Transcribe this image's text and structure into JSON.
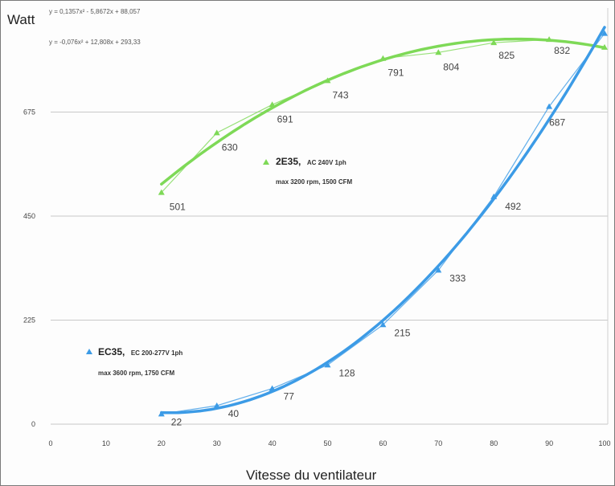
{
  "chart_data": {
    "type": "line",
    "ylabel": "Watt",
    "xlabel": "Vitesse du ventilateur",
    "xlim": [
      0,
      100
    ],
    "ylim": [
      0,
      900
    ],
    "x_ticks": [
      "0",
      "10",
      "20",
      "30",
      "40",
      "50",
      "60",
      "70",
      "80",
      "90",
      "100"
    ],
    "y_ticks": [
      "0",
      "225",
      "450",
      "675"
    ],
    "grid": "horizontal",
    "equations": [
      "y = 0,1357x² - 5,8672x + 88,057",
      "y = -0,076x² + 12,808x + 293,33"
    ],
    "series": [
      {
        "name": "2E35,",
        "name_detail": "AC 240V 1ph",
        "note": "max 3200 rpm, 1500 CFM",
        "color": "#7ed957",
        "x": [
          20,
          30,
          40,
          50,
          60,
          70,
          80,
          90,
          100
        ],
        "values": [
          501,
          630,
          691,
          743,
          791,
          804,
          825,
          832,
          null
        ],
        "labels": [
          "501",
          "630",
          "691",
          "743",
          "791",
          "804",
          "825",
          "832",
          ""
        ],
        "marker_values": [
          501,
          630,
          691,
          743,
          791,
          804,
          825,
          832,
          815
        ],
        "trend": [
          -0.076,
          12.808,
          293.33
        ]
      },
      {
        "name": "EC35,",
        "name_detail": "EC 200-277V 1ph",
        "note": "max 3600 rpm, 1750 CFM",
        "color": "#3c9be6",
        "x": [
          20,
          30,
          40,
          50,
          60,
          70,
          80,
          90,
          100
        ],
        "values": [
          22,
          40,
          77,
          128,
          215,
          333,
          492,
          687,
          null
        ],
        "labels": [
          "22",
          "40",
          "77",
          "128",
          "215",
          "333",
          "492",
          "687",
          ""
        ],
        "marker_values": [
          22,
          40,
          77,
          128,
          215,
          333,
          492,
          687,
          845
        ],
        "trend": [
          0.1357,
          -5.8672,
          88.057
        ]
      }
    ]
  }
}
